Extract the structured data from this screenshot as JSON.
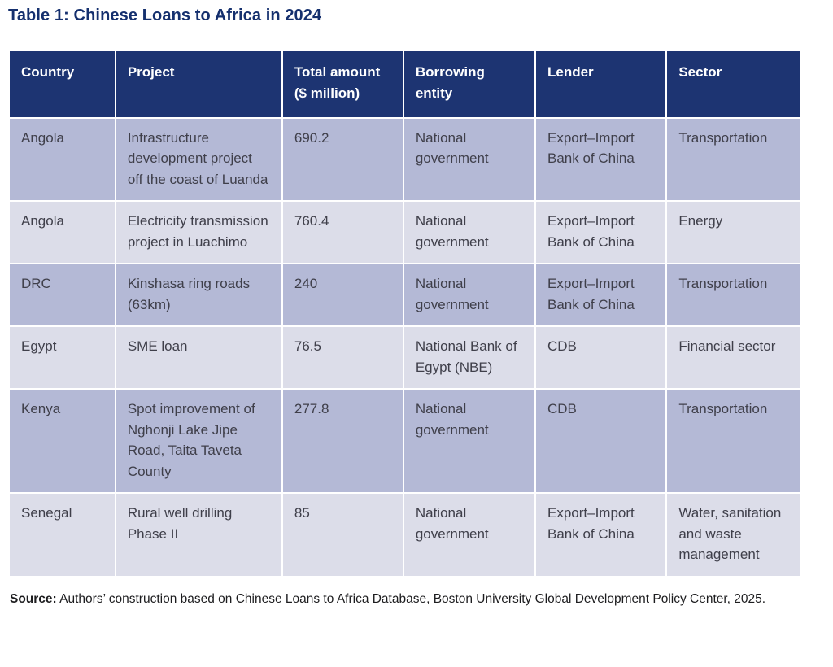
{
  "title": "Table 1: Chinese Loans to Africa in 2024",
  "colors": {
    "title_navy": "#15306e",
    "header_bg": "#1d3472",
    "header_text": "#ffffff",
    "row_odd_bg": "#b4b9d6",
    "row_even_bg": "#dcdde9",
    "cell_text": "#3f3f4a"
  },
  "table": {
    "columns": [
      {
        "label": "Country",
        "lines": [
          "Country"
        ]
      },
      {
        "label": "Project",
        "lines": [
          "Project"
        ]
      },
      {
        "label": "Total amount ($ million)",
        "lines": [
          "Total amount",
          "($ million)"
        ]
      },
      {
        "label": "Borrowing entity",
        "lines": [
          "Borrowing",
          "entity"
        ]
      },
      {
        "label": "Lender",
        "lines": [
          "Lender"
        ]
      },
      {
        "label": "Sector",
        "lines": [
          "Sector"
        ]
      }
    ],
    "rows": [
      [
        "Angola",
        "Infrastructure development project off the coast of Luanda",
        "690.2",
        "National government",
        "Export–Import Bank of China",
        "Transportation"
      ],
      [
        "Angola",
        "Electricity transmission project in Luachimo",
        "760.4",
        "National government",
        "Export–Import Bank of China",
        "Energy"
      ],
      [
        "DRC",
        "Kinshasa ring roads (63km)",
        "240",
        "National government",
        "Export–Import Bank of China",
        "Transportation"
      ],
      [
        "Egypt",
        "SME loan",
        "76.5",
        "National Bank of Egypt (NBE)",
        "CDB",
        "Financial sector"
      ],
      [
        "Kenya",
        "Spot improvement of Nghonji Lake Jipe Road, Taita Taveta County",
        "277.8",
        "National government",
        "CDB",
        "Transportation"
      ],
      [
        "Senegal",
        "Rural well drilling Phase II",
        "85",
        "National government",
        "Export–Import Bank of China",
        "Water, sanitation and waste management"
      ]
    ]
  },
  "source": {
    "label": "Source:",
    "text": " Authors’ construction based on Chinese Loans to Africa Database, Boston University Global Development Policy Center, 2025."
  }
}
